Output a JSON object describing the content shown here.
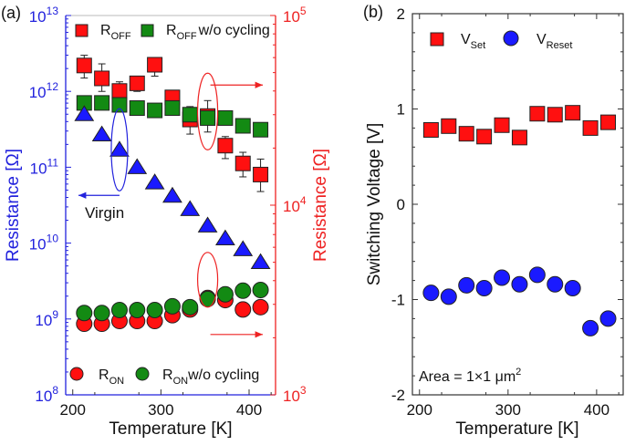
{
  "chart_data": [
    {
      "panel_label": "(a)",
      "type": "scatter",
      "xlabel": "Temperature [K]",
      "ylabel_left": "Resistance [Ω]",
      "ylabel_right": "Resistance [Ω]",
      "xlim": [
        192,
        430
      ],
      "xticks": [
        200,
        300,
        400
      ],
      "y_left_scale": "log",
      "ylim_left": [
        100000000.0,
        10000000000000.0
      ],
      "yticks_left": [
        {
          "base": "10",
          "exp": "8"
        },
        {
          "base": "10",
          "exp": "9"
        },
        {
          "base": "10",
          "exp": "10"
        },
        {
          "base": "10",
          "exp": "11"
        },
        {
          "base": "10",
          "exp": "12"
        },
        {
          "base": "10",
          "exp": "13"
        }
      ],
      "y_right_scale": "log",
      "ylim_right": [
        1000.0,
        100000.0
      ],
      "yticks_right": [
        {
          "base": "10",
          "exp": "3"
        },
        {
          "base": "10",
          "exp": "4"
        },
        {
          "base": "10",
          "exp": "5"
        }
      ],
      "left_axis_color": "#2222dd",
      "right_axis_color": "#ee2222",
      "x": [
        213,
        233,
        253,
        273,
        293,
        313,
        333,
        353,
        373,
        393,
        413
      ],
      "series": [
        {
          "name": "Virgin",
          "axis": "left",
          "marker": "triangle",
          "color": "#1a1aff",
          "values": [
            500000000000.0,
            270000000000.0,
            170000000000.0,
            100000000000.0,
            63000000000.0,
            42000000000.0,
            28000000000.0,
            17000000000.0,
            11500000000.0,
            8300000000.0,
            5600000000.0
          ]
        },
        {
          "name": "R_OFF w/o cycling",
          "axis": "right",
          "marker": "square",
          "color": "#138a13",
          "values": [
            34600,
            34600,
            33800,
            32500,
            31600,
            32500,
            30000,
            28800,
            28800,
            26200,
            25000
          ]
        },
        {
          "name": "R_OFF",
          "axis": "right",
          "marker": "square",
          "color": "#ff1010",
          "values": [
            54500,
            46600,
            40000,
            43900,
            55000,
            37000,
            28300,
            29500,
            20600,
            16600,
            14500
          ],
          "error_low": [
            46800,
            39800,
            34700,
            39800,
            47900,
            36000,
            23700,
            24300,
            17600,
            14100,
            11800
          ],
          "error_high": [
            61700,
            55600,
            44700,
            46800,
            59000,
            38000,
            33100,
            35600,
            23000,
            19000,
            17500
          ]
        },
        {
          "name": "R_ON",
          "axis": "right",
          "marker": "circle",
          "color": "#ff1010",
          "values": [
            2370,
            2370,
            2450,
            2450,
            2450,
            2630,
            2820,
            3240,
            3160,
            2820,
            2900
          ]
        },
        {
          "name": "R_ON w/o cycling",
          "axis": "right",
          "marker": "circle",
          "color": "#138a13",
          "values": [
            2700,
            2700,
            2800,
            2800,
            2800,
            2930,
            2900,
            3200,
            3390,
            3540,
            3570
          ]
        }
      ],
      "legend": {
        "roff": {
          "main": "R",
          "sub": "OFF",
          "tail": ""
        },
        "roff_wo": {
          "main": "R",
          "sub": "OFF",
          "tail": "w/o cycling"
        },
        "ron": {
          "main": "R",
          "sub": "ON",
          "tail": ""
        },
        "ron_wo": {
          "main": "R",
          "sub": "ON",
          "tail": "w/o cycling"
        }
      },
      "annotation_virgin": "Virgin"
    },
    {
      "panel_label": "(b)",
      "type": "scatter",
      "xlabel": "Temperature [K]",
      "ylabel": "Switching Voltage [V]",
      "xlim": [
        192,
        430
      ],
      "xticks": [
        200,
        300,
        400
      ],
      "ylim": [
        -2,
        2
      ],
      "yticks": [
        "-2",
        "-1",
        "0",
        "1",
        "2"
      ],
      "x": [
        213,
        233,
        253,
        273,
        293,
        313,
        333,
        353,
        373,
        393,
        413
      ],
      "series": [
        {
          "name": "V_Set",
          "marker": "square",
          "color": "#ff1010",
          "values": [
            0.78,
            0.82,
            0.74,
            0.71,
            0.83,
            0.7,
            0.95,
            0.94,
            0.96,
            0.8,
            0.86
          ]
        },
        {
          "name": "V_Reset",
          "marker": "circle",
          "color": "#1a1aff",
          "values": [
            -0.93,
            -0.97,
            -0.85,
            -0.88,
            -0.77,
            -0.84,
            -0.74,
            -0.84,
            -0.88,
            -1.3,
            -1.2
          ]
        }
      ],
      "legend": {
        "vset": {
          "main": "V",
          "sub": "Set"
        },
        "vreset": {
          "main": "V",
          "sub": "Reset"
        }
      },
      "annotation": {
        "main": "Area = 1×1 μm",
        "sup": "2"
      }
    }
  ]
}
